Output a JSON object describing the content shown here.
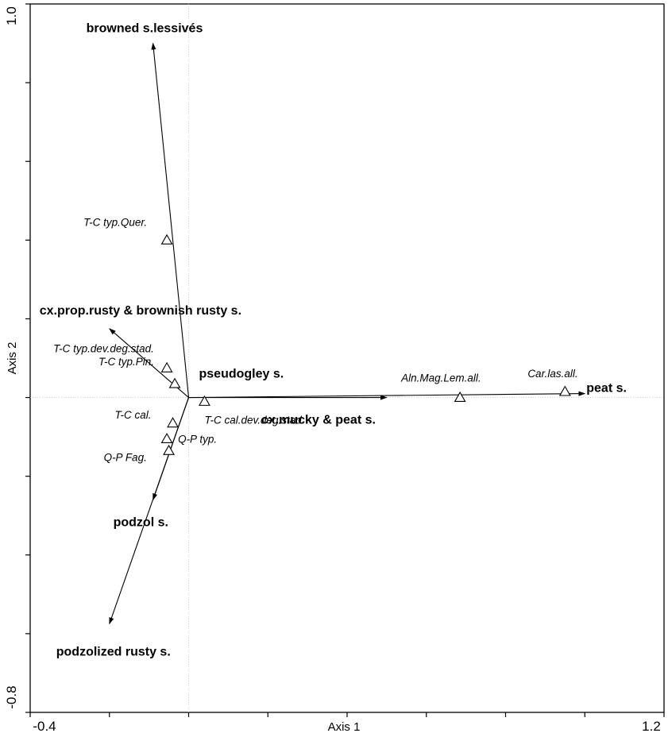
{
  "chart_data": {
    "type": "scatter",
    "xlabel": "Axis 1",
    "ylabel": "Axis 2",
    "xlim": [
      -0.4,
      1.2
    ],
    "ylim": [
      -0.8,
      1.0
    ],
    "x_tick_labels": [
      "-0.4",
      "1.2"
    ],
    "y_tick_labels": [
      "1.0",
      "-0.8"
    ],
    "x_ticks": [
      -0.4,
      -0.2,
      0.0,
      0.2,
      0.4,
      0.6,
      0.8,
      1.0,
      1.2
    ],
    "y_ticks": [
      -0.8,
      -0.6,
      -0.4,
      -0.2,
      0.0,
      0.2,
      0.4,
      0.6,
      0.8,
      1.0
    ],
    "vectors": [
      {
        "label": "browned s.lessivés",
        "x": -0.09,
        "y": 0.9
      },
      {
        "label": "cx.prop.rusty & brownish rusty s.",
        "x": -0.2,
        "y": 0.175
      },
      {
        "label": "pseudogley s.",
        "x": 0.0,
        "y": 0.0
      },
      {
        "label": "cx.mucky & peat s.",
        "x": 0.5,
        "y": 0.0
      },
      {
        "label": "peat s.",
        "x": 1.0,
        "y": 0.01
      },
      {
        "label": "podzol s.",
        "x": -0.09,
        "y": -0.26
      },
      {
        "label": "podzolized rusty s.",
        "x": -0.2,
        "y": -0.575
      }
    ],
    "sites": [
      {
        "label": "T-C typ.Quer.",
        "x": -0.055,
        "y": 0.4
      },
      {
        "label": "T-C typ.dev.deg.stad.",
        "x": -0.055,
        "y": 0.075
      },
      {
        "label": "T-C typ.Pin.",
        "x": -0.035,
        "y": 0.035
      },
      {
        "label": "T-C cal.dev.deg.stad.",
        "x": 0.04,
        "y": -0.01
      },
      {
        "label": "T-C cal.",
        "x": -0.04,
        "y": -0.065
      },
      {
        "label": "Q-P typ.",
        "x": -0.055,
        "y": -0.105
      },
      {
        "label": "Q-P Fag.",
        "x": -0.05,
        "y": -0.135
      },
      {
        "label": "Aln.Mag.Lem.all.",
        "x": 0.685,
        "y": 0.0
      },
      {
        "label": "Car.las.all.",
        "x": 0.95,
        "y": 0.015
      }
    ],
    "grid": false,
    "legend": "none"
  }
}
